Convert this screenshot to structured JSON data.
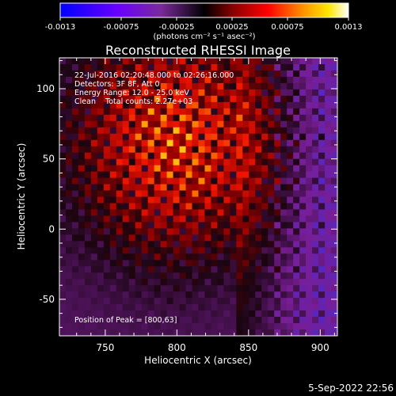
{
  "colorbar": {
    "tick_labels": [
      "-0.0013",
      "-0.00075",
      "-0.00025",
      "0.00025",
      "0.00075",
      "0.0013"
    ],
    "unit_label": "(photons cm⁻² s⁻¹ asec⁻²)",
    "range": [
      -0.0013,
      0.0013
    ]
  },
  "chart_data": {
    "type": "heatmap",
    "title": "Reconstructed RHESSI Image",
    "xlabel": "Heliocentric X (arcsec)",
    "ylabel": "Heliocentric Y (arcsec)",
    "xlim": [
      718,
      912
    ],
    "ylim": [
      -76,
      122
    ],
    "x_ticks": [
      750,
      800,
      850,
      900
    ],
    "y_ticks": [
      -50,
      0,
      50,
      100
    ],
    "annotations": [
      "22-Jul-2016 02:20:48.000 to 02:26:16.000",
      "Detectors: 3F 8F, Att 0",
      "Energy Range: 12.0 - 25.0 keV",
      "Clean    Total counts: 2.27e+03"
    ],
    "peak_label": "Position of Peak = [800,63]",
    "peak_position": [
      800,
      63
    ],
    "colormap": "RHESSI rainbow: blue-purple (negative) to red-orange-yellow-white (positive)"
  },
  "footer": {
    "date": "5-Sep-2022 22:56"
  },
  "colors": {
    "background": "#000000",
    "foreground": "#ffffff"
  }
}
